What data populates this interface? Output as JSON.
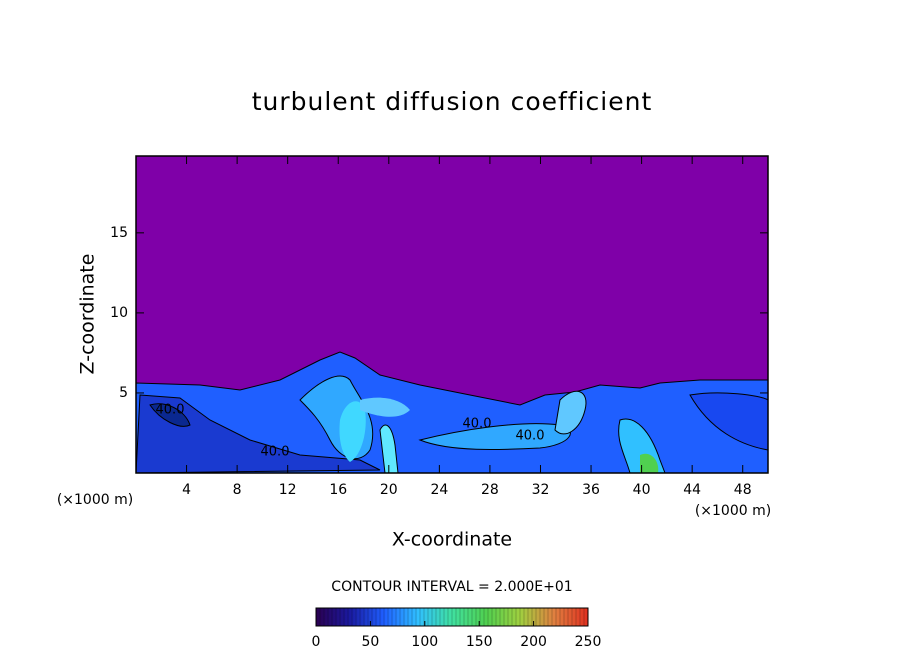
{
  "chart_data": {
    "type": "contour",
    "title": "turbulent diffusion coefficient",
    "x_label": "X-coordinate",
    "y_label": "Z-coordinate",
    "x_unit": "(×1000 m)",
    "x_unit_right": "(×1000 m)",
    "xlim": [
      0,
      50
    ],
    "xticks": [
      4,
      8,
      12,
      16,
      20,
      24,
      28,
      32,
      36,
      40,
      44,
      48
    ],
    "ylim": [
      0,
      19.8
    ],
    "yticks": [
      5,
      10,
      15
    ],
    "contour_labels": [
      "40.0",
      "40.0",
      "40.0",
      "40.0"
    ],
    "contour_interval": "CONTOUR INTERVAL = 2.000E+01",
    "clim": [
      0,
      250
    ],
    "cticks": [
      0,
      50,
      100,
      150,
      200,
      250
    ],
    "colormap": [
      "#2a0050",
      "#1a1aa0",
      "#1f5fff",
      "#30c0ff",
      "#40e0a0",
      "#50d050",
      "#a0d040",
      "#e08040",
      "#e03020"
    ],
    "background_color": "#7f00a8"
  }
}
